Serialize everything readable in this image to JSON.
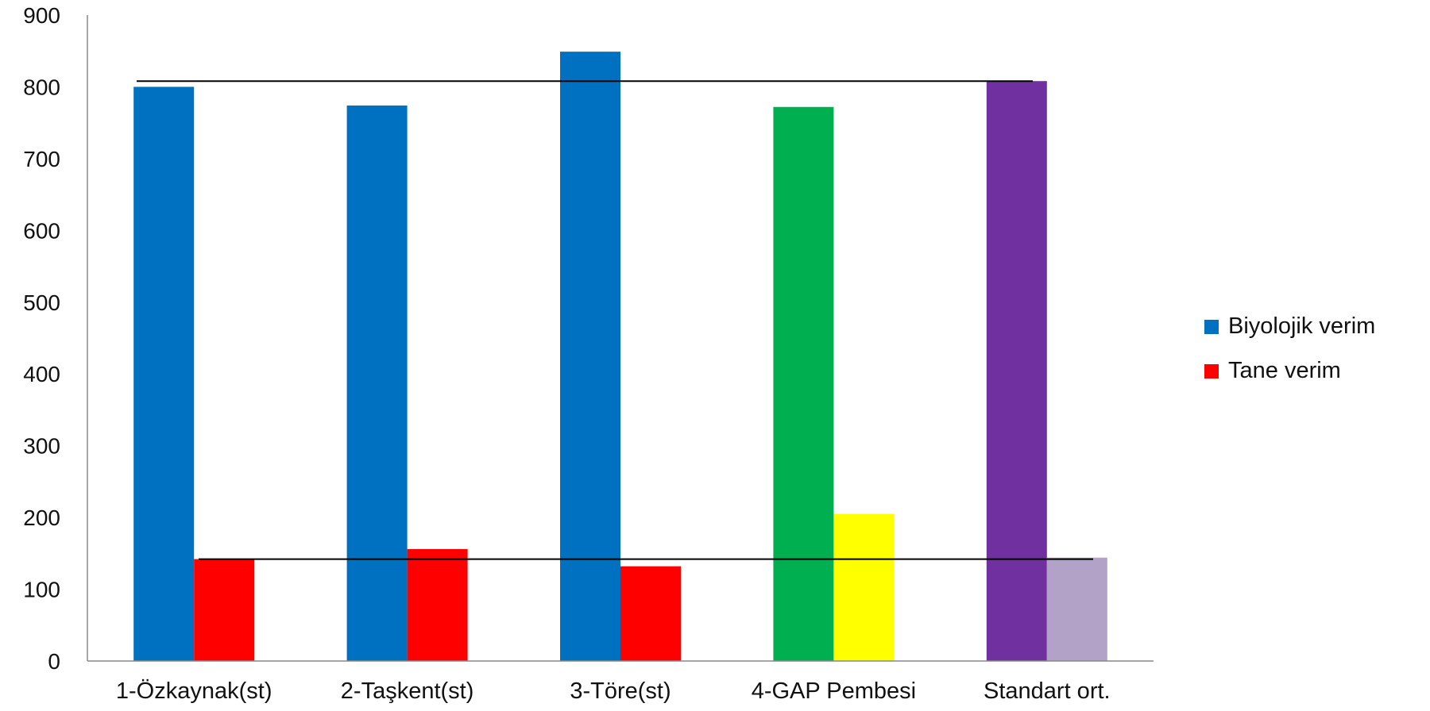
{
  "chart_data": {
    "type": "bar",
    "categories": [
      "1-Özkaynak(st)",
      "2-Taşkent(st)",
      "3-Töre(st)",
      "4-GAP Pembesi",
      "Standart ort."
    ],
    "series": [
      {
        "name": "Biyolojik verim",
        "values": [
          800,
          774,
          849,
          772,
          808
        ],
        "legend_color": "#0070C0",
        "colors": [
          "#0070C0",
          "#0070C0",
          "#0070C0",
          "#00B050",
          "#7030A0"
        ]
      },
      {
        "name": "Tane verim",
        "values": [
          142,
          156,
          132,
          205,
          144
        ],
        "legend_color": "#FF0000",
        "colors": [
          "#FF0000",
          "#FF0000",
          "#FF0000",
          "#FFFF00",
          "#B3A2C7"
        ]
      }
    ],
    "reference_lines": [
      808,
      142
    ],
    "yticks": [
      0,
      100,
      200,
      300,
      400,
      500,
      600,
      700,
      800,
      900
    ],
    "ylim": [
      0,
      900
    ],
    "xlabel": "",
    "ylabel": "",
    "title": "",
    "grid": false,
    "legend_position": "right"
  }
}
